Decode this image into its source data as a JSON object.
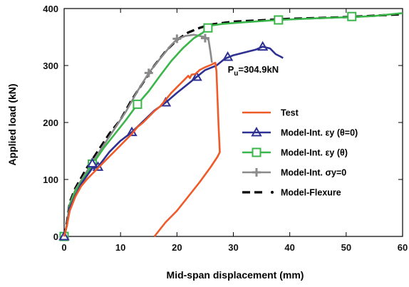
{
  "chart_data": {
    "type": "line",
    "xlabel": "Mid-span displacement (mm)",
    "ylabel": "Applied load (kN)",
    "xlim": [
      0,
      60
    ],
    "ylim": [
      0,
      400
    ],
    "xticks": [
      0,
      10,
      20,
      30,
      40,
      50,
      60
    ],
    "yticks": [
      0,
      100,
      200,
      300,
      400
    ],
    "grid": false,
    "legend_position": "center-right",
    "annotation": {
      "prefix": "P",
      "subscript": "u",
      "text": "=304.9kN",
      "x": 29,
      "y": 304.9
    },
    "series": [
      {
        "name": "Test",
        "color": "#f05a28",
        "marker": "none",
        "dash": "solid",
        "points": [
          [
            0,
            0
          ],
          [
            0.5,
            20
          ],
          [
            1,
            45
          ],
          [
            2,
            70
          ],
          [
            3,
            88
          ],
          [
            4,
            100
          ],
          [
            5,
            110
          ],
          [
            6,
            120
          ],
          [
            7,
            130
          ],
          [
            8,
            140
          ],
          [
            9,
            150
          ],
          [
            10,
            160
          ],
          [
            11,
            170
          ],
          [
            12,
            180
          ],
          [
            13,
            192
          ],
          [
            14,
            200
          ],
          [
            15,
            210
          ],
          [
            16,
            220
          ],
          [
            17,
            228
          ],
          [
            18,
            240
          ],
          [
            19,
            252
          ],
          [
            20,
            262
          ],
          [
            21,
            272
          ],
          [
            22,
            282
          ],
          [
            22.3,
            278
          ],
          [
            22.6,
            284
          ],
          [
            23.2,
            285
          ],
          [
            23.6,
            288
          ],
          [
            24,
            292
          ],
          [
            25,
            297
          ],
          [
            26,
            301
          ],
          [
            26.8,
            304.9
          ],
          [
            27,
            290
          ],
          [
            27.2,
            240
          ],
          [
            27.4,
            190
          ],
          [
            27.6,
            148
          ],
          [
            27.2,
            140
          ],
          [
            26,
            122
          ],
          [
            24,
            95
          ],
          [
            22,
            70
          ],
          [
            20,
            45
          ],
          [
            18,
            25
          ],
          [
            16,
            0
          ]
        ]
      },
      {
        "name": "Model-Int.",
        "legend_symbol": "εy (θ=0)",
        "color": "#2e3192",
        "marker": "triangle",
        "dash": "solid",
        "points": [
          [
            0,
            0
          ],
          [
            0.5,
            20
          ],
          [
            1,
            50
          ],
          [
            2,
            72
          ],
          [
            3,
            92
          ],
          [
            5,
            120
          ],
          [
            6,
            122
          ],
          [
            8,
            148
          ],
          [
            10,
            168
          ],
          [
            12,
            183
          ],
          [
            14,
            202
          ],
          [
            16,
            221
          ],
          [
            18,
            235
          ],
          [
            20,
            252
          ],
          [
            22,
            268
          ],
          [
            23.5,
            280
          ],
          [
            25,
            292
          ],
          [
            27,
            300
          ],
          [
            28.5,
            312
          ],
          [
            30,
            318
          ],
          [
            32,
            323
          ],
          [
            34,
            328
          ],
          [
            35.2,
            333
          ],
          [
            36.5,
            330
          ],
          [
            37.5,
            320
          ],
          [
            38.5,
            315
          ],
          [
            38.8,
            313
          ]
        ],
        "marker_points": [
          [
            0,
            0
          ],
          [
            5,
            128
          ],
          [
            6,
            122
          ],
          [
            12,
            183
          ],
          [
            18,
            235
          ],
          [
            23.5,
            280
          ],
          [
            29,
            315
          ],
          [
            35.2,
            333
          ]
        ]
      },
      {
        "name": "Model-Int.",
        "legend_symbol": "εy (θ)",
        "color": "#39b54a",
        "marker": "square",
        "dash": "solid",
        "points": [
          [
            0,
            0
          ],
          [
            0.5,
            20
          ],
          [
            1,
            55
          ],
          [
            2,
            80
          ],
          [
            3,
            95
          ],
          [
            5,
            126
          ],
          [
            7,
            155
          ],
          [
            9,
            180
          ],
          [
            11,
            205
          ],
          [
            13,
            232
          ],
          [
            15,
            255
          ],
          [
            17,
            282
          ],
          [
            19,
            308
          ],
          [
            21,
            330
          ],
          [
            23,
            348
          ],
          [
            24.5,
            357
          ],
          [
            25.5,
            366
          ],
          [
            26,
            370
          ],
          [
            28,
            373
          ],
          [
            32,
            376
          ],
          [
            38,
            380
          ],
          [
            45,
            383
          ],
          [
            51,
            385
          ],
          [
            55,
            387
          ],
          [
            60,
            392
          ]
        ],
        "marker_points": [
          [
            0,
            0
          ],
          [
            5,
            127
          ],
          [
            13,
            232
          ],
          [
            25.5,
            366
          ],
          [
            38,
            380
          ],
          [
            51,
            386
          ]
        ]
      },
      {
        "name": "Model-Int.",
        "legend_symbol": "σy=0",
        "color": "#8a8a8a",
        "marker": "plus",
        "dash": "solid",
        "points": [
          [
            0,
            0
          ],
          [
            0.5,
            22
          ],
          [
            1,
            57
          ],
          [
            2,
            82
          ],
          [
            3,
            98
          ],
          [
            5,
            130
          ],
          [
            7,
            160
          ],
          [
            9,
            190
          ],
          [
            11,
            220
          ],
          [
            13,
            255
          ],
          [
            15,
            287
          ],
          [
            17,
            312
          ],
          [
            19,
            336
          ],
          [
            20,
            346
          ],
          [
            21.5,
            352
          ],
          [
            23,
            354
          ],
          [
            25,
            350
          ],
          [
            25.6,
            345
          ],
          [
            26,
            320
          ],
          [
            26.2,
            305
          ]
        ],
        "marker_points": [
          [
            0,
            0
          ],
          [
            5,
            130
          ],
          [
            15,
            287
          ],
          [
            20,
            347
          ],
          [
            25,
            348
          ]
        ]
      },
      {
        "name": "Model-Flexure",
        "color": "#000000",
        "marker": "none",
        "dash": "dashed",
        "points": [
          [
            0,
            0
          ],
          [
            0.5,
            25
          ],
          [
            1,
            60
          ],
          [
            2,
            85
          ],
          [
            4,
            120
          ],
          [
            6,
            150
          ],
          [
            8,
            180
          ],
          [
            10,
            205
          ],
          [
            12,
            240
          ],
          [
            14,
            270
          ],
          [
            16,
            300
          ],
          [
            18,
            325
          ],
          [
            20,
            345
          ],
          [
            22,
            358
          ],
          [
            24,
            366
          ],
          [
            26,
            372
          ],
          [
            30,
            377
          ],
          [
            40,
            382
          ],
          [
            50,
            385
          ],
          [
            60,
            390
          ]
        ]
      }
    ]
  }
}
